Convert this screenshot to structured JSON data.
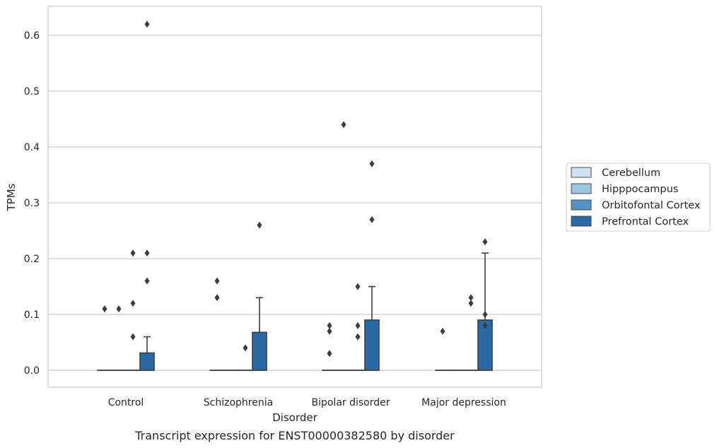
{
  "chart_data": {
    "type": "box",
    "caption": "Transcript expression for ENST00000382580 by disorder",
    "xlabel": "Disorder",
    "ylabel": "TPMs",
    "ylim": [
      -0.03,
      0.655
    ],
    "yticks": [
      "0.0",
      "0.1",
      "0.2",
      "0.3",
      "0.4",
      "0.5",
      "0.6"
    ],
    "grid": true,
    "legend_position": "right",
    "categories": [
      "Control",
      "Schizophrenia",
      "Bipolar disorder",
      "Major depression"
    ],
    "series": [
      {
        "name": "Cerebellum",
        "color": "#d0e1f2",
        "boxes": [
          {
            "q1": 0,
            "median": 0,
            "q3": 0,
            "whisker_low": 0,
            "whisker_high": 0,
            "outliers": [
              0.11
            ]
          },
          {
            "q1": 0,
            "median": 0,
            "q3": 0,
            "whisker_low": 0,
            "whisker_high": 0,
            "outliers": [
              0.13,
              0.16
            ]
          },
          {
            "q1": 0,
            "median": 0,
            "q3": 0,
            "whisker_low": 0,
            "whisker_high": 0,
            "outliers": [
              0.03,
              0.07,
              0.08
            ]
          },
          {
            "q1": 0,
            "median": 0,
            "q3": 0,
            "whisker_low": 0,
            "whisker_high": 0,
            "outliers": [
              0.07
            ]
          }
        ]
      },
      {
        "name": "Hipppocampus",
        "color": "#9ac6df",
        "boxes": [
          {
            "q1": 0,
            "median": 0,
            "q3": 0,
            "whisker_low": 0,
            "whisker_high": 0,
            "outliers": [
              0.11
            ]
          },
          {
            "q1": 0,
            "median": 0,
            "q3": 0,
            "whisker_low": 0,
            "whisker_high": 0,
            "outliers": []
          },
          {
            "q1": 0,
            "median": 0,
            "q3": 0,
            "whisker_low": 0,
            "whisker_high": 0,
            "outliers": [
              0.44
            ]
          },
          {
            "q1": 0,
            "median": 0,
            "q3": 0,
            "whisker_low": 0,
            "whisker_high": 0,
            "outliers": []
          }
        ]
      },
      {
        "name": "Orbitofontal Cortex",
        "color": "#5193c2",
        "boxes": [
          {
            "q1": 0,
            "median": 0,
            "q3": 0,
            "whisker_low": 0,
            "whisker_high": 0,
            "outliers": [
              0.06,
              0.12,
              0.21
            ]
          },
          {
            "q1": 0,
            "median": 0,
            "q3": 0,
            "whisker_low": 0,
            "whisker_high": 0,
            "outliers": [
              0.04
            ]
          },
          {
            "q1": 0,
            "median": 0,
            "q3": 0,
            "whisker_low": 0,
            "whisker_high": 0,
            "outliers": [
              0.06,
              0.08,
              0.15
            ]
          },
          {
            "q1": 0,
            "median": 0,
            "q3": 0,
            "whisker_low": 0,
            "whisker_high": 0,
            "outliers": [
              0.12,
              0.13
            ]
          }
        ]
      },
      {
        "name": "Prefrontal Cortex",
        "color": "#2b69a6",
        "boxes": [
          {
            "q1": 0,
            "median": 0,
            "q3": 0.031,
            "whisker_low": 0,
            "whisker_high": 0.06,
            "outliers": [
              0.16,
              0.21,
              0.62
            ]
          },
          {
            "q1": 0,
            "median": 0,
            "q3": 0.068,
            "whisker_low": 0,
            "whisker_high": 0.13,
            "outliers": [
              0.26
            ]
          },
          {
            "q1": 0,
            "median": 0,
            "q3": 0.09,
            "whisker_low": 0,
            "whisker_high": 0.15,
            "outliers": [
              0.27,
              0.37
            ]
          },
          {
            "q1": 0,
            "median": 0,
            "q3": 0.09,
            "whisker_low": 0,
            "whisker_high": 0.21,
            "outliers": [
              0.08,
              0.1,
              0.23
            ]
          }
        ]
      }
    ]
  }
}
